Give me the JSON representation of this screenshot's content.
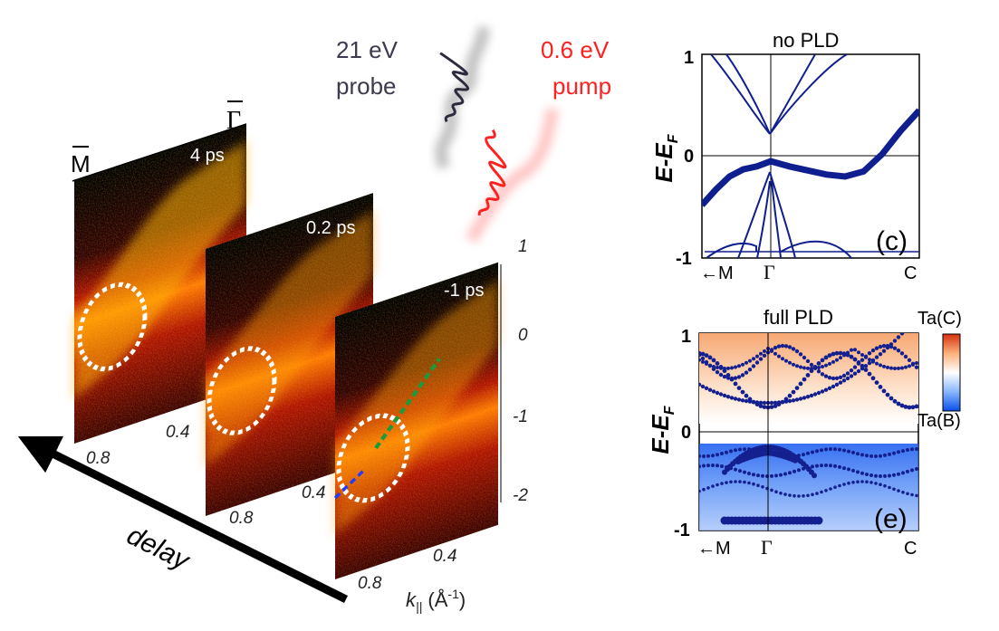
{
  "figure": {
    "arpes": {
      "delay_label": "delay",
      "panels": [
        {
          "time": "4 ps",
          "ticks": [
            "0.8",
            "0.4"
          ]
        },
        {
          "time": "0.2 ps",
          "ticks": [
            "0.8",
            "0.4"
          ]
        },
        {
          "time": "-1 ps",
          "ticks": [
            "0.8",
            "0.4"
          ]
        }
      ],
      "point_M": "M",
      "point_Gamma": "Γ",
      "energy_ticks": [
        "1",
        "0",
        "-1",
        "-2"
      ],
      "k_label": {
        "main": "k",
        "sub": "||",
        "unit": " (Å",
        "exp": "-1",
        "close": ")"
      }
    },
    "pulses": {
      "probe": [
        "21 eV",
        "probe"
      ],
      "pump": [
        "0.6 eV",
        "pump"
      ],
      "probe_color": "#2c2a3d",
      "pump_color": "#ff2020"
    },
    "band_c": {
      "title": "no PLD",
      "panel_label": "(c)",
      "ylabel": {
        "main": "E-E",
        "sub": "F"
      },
      "yticks": [
        "1",
        "0",
        "-1"
      ],
      "xticks": [
        "←M",
        "Γ",
        "C"
      ],
      "line_color": "#101f8f"
    },
    "band_e": {
      "title": "full PLD",
      "panel_label": "(e)",
      "ylabel": {
        "main": "E-E",
        "sub": "F"
      },
      "yticks": [
        "1",
        "0",
        "-1"
      ],
      "xticks": [
        "←M",
        "Γ",
        "C"
      ],
      "colorbar_top": "Ta(C)",
      "colorbar_bottom": "Ta(B)",
      "dot_color": "#14208f"
    }
  },
  "chart_data": [
    {
      "type": "line",
      "title": "no PLD",
      "ylabel": "E-E_F",
      "xticks": [
        "←M",
        "Γ",
        "C"
      ],
      "ylim": [
        -1,
        1
      ],
      "x": [
        -1,
        -0.8,
        -0.6,
        -0.4,
        -0.2,
        0,
        0.25,
        0.5,
        0.75,
        1.0,
        1.25,
        1.5,
        1.75,
        2.0
      ],
      "series": [
        {
          "values": [
            -0.48,
            -0.33,
            -0.2,
            -0.13,
            -0.1,
            -0.05,
            -0.1,
            -0.14,
            -0.18,
            -0.2,
            -0.15,
            0.02,
            0.25,
            0.45
          ]
        }
      ]
    },
    {
      "type": "scatter",
      "title": "full PLD",
      "ylabel": "E-E_F",
      "xticks": [
        "←M",
        "Γ",
        "C"
      ],
      "ylim": [
        -1,
        1
      ],
      "legend": [
        "Ta(C)",
        "Ta(B)"
      ]
    }
  ]
}
